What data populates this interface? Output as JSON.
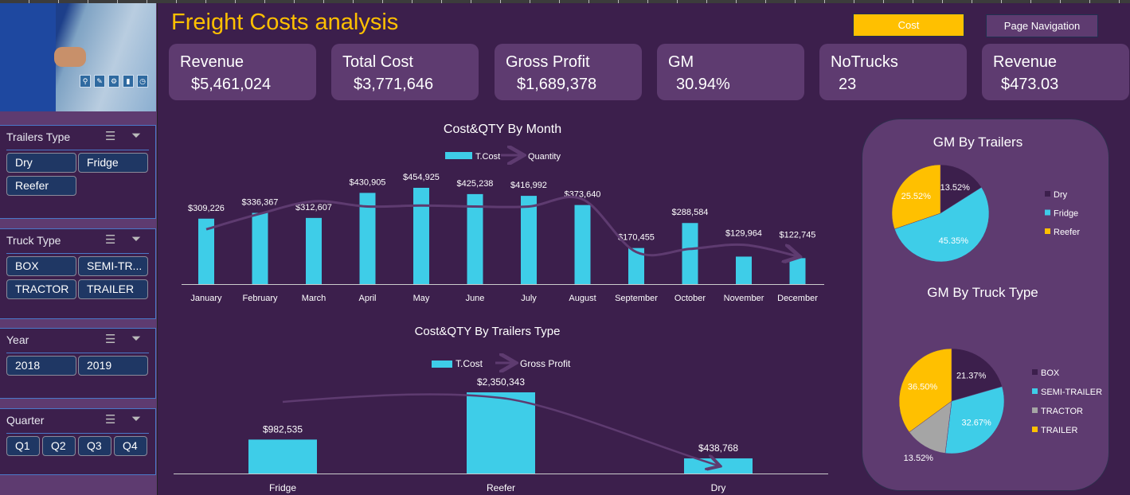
{
  "title": "Freight Costs analysis",
  "buttons": {
    "cost": "Cost",
    "nav": "Page Navigation"
  },
  "colors": {
    "bg": "#3c1f4c",
    "card": "#5e3b70",
    "accent": "#ffc000",
    "bar": "#3ecde8",
    "line": "#5e3b70",
    "dry": "#3c1f4c",
    "fridge": "#3ecde8",
    "reefer": "#ffc000",
    "tractor": "#a5a5a5"
  },
  "kpis": [
    {
      "label": "Revenue",
      "value": "$5,461,024"
    },
    {
      "label": "Total Cost",
      "value": "$3,771,646"
    },
    {
      "label": "Gross Profit",
      "value": "$1,689,378"
    },
    {
      "label": "GM",
      "value": "30.94%"
    },
    {
      "label": "NoTrucks",
      "value": "23"
    },
    {
      "label": "Revenue",
      "value": "$473.03"
    }
  ],
  "slicers": [
    {
      "title": "Trailers Type",
      "items": [
        "Dry",
        "Fridge",
        "Reefer"
      ]
    },
    {
      "title": "Truck Type",
      "items": [
        "BOX",
        "SEMI-TR...",
        "TRACTOR",
        "TRAILER"
      ]
    },
    {
      "title": "Year",
      "items": [
        "2018",
        "2019"
      ]
    },
    {
      "title": "Quarter",
      "items": [
        "Q1",
        "Q2",
        "Q3",
        "Q4"
      ]
    }
  ],
  "icons": {
    "multiselect": "multi-select-icon",
    "clear": "clear-filter-icon"
  },
  "chart_data": [
    {
      "type": "bar",
      "title": "Cost&QTY By Month",
      "legend": [
        "T.Cost",
        "Quantity"
      ],
      "categories": [
        "January",
        "February",
        "March",
        "April",
        "May",
        "June",
        "July",
        "August",
        "September",
        "October",
        "November",
        "December"
      ],
      "series": [
        {
          "name": "T.Cost",
          "values": [
            309226,
            336367,
            312607,
            430905,
            454925,
            425238,
            416992,
            373640,
            170455,
            288584,
            129964,
            122745
          ],
          "labels": [
            "$309,226",
            "$336,367",
            "$312,607",
            "$430,905",
            "$454,925",
            "$425,238",
            "$416,992",
            "$373,640",
            "$170,455",
            "$288,584",
            "$129,964",
            "$122,745"
          ]
        },
        {
          "name": "Quantity",
          "type": "line",
          "values": [
            53,
            68,
            80,
            75,
            76,
            75,
            75,
            82,
            31,
            34,
            38,
            27
          ]
        }
      ]
    },
    {
      "type": "bar",
      "title": "Cost&QTY By Trailers Type",
      "legend": [
        "T.Cost",
        "Gross Profit"
      ],
      "categories": [
        "Fridge",
        "Reefer",
        "Dry"
      ],
      "series": [
        {
          "name": "T.Cost",
          "values": [
            982535,
            2350343,
            438768
          ],
          "labels": [
            "$982,535",
            "$2,350,343",
            "$438,768"
          ]
        },
        {
          "name": "Gross Profit",
          "type": "line",
          "values": [
            90,
            95,
            10
          ]
        }
      ]
    },
    {
      "type": "pie",
      "title": "GM By Trailers",
      "categories": [
        "Dry",
        "Fridge",
        "Reefer"
      ],
      "values": [
        13.52,
        45.35,
        25.52
      ],
      "labels": [
        "13.52%",
        "45.35%",
        "25.52%"
      ],
      "legend": "right"
    },
    {
      "type": "pie",
      "title": "GM By Truck Type",
      "categories": [
        "BOX",
        "SEMI-TRAILER",
        "TRACTOR",
        "TRAILER"
      ],
      "values": [
        21.37,
        32.67,
        13.52,
        36.5
      ],
      "labels": [
        "21.37%",
        "32.67%",
        "13.52%",
        "36.50%"
      ],
      "legend": "right"
    }
  ]
}
